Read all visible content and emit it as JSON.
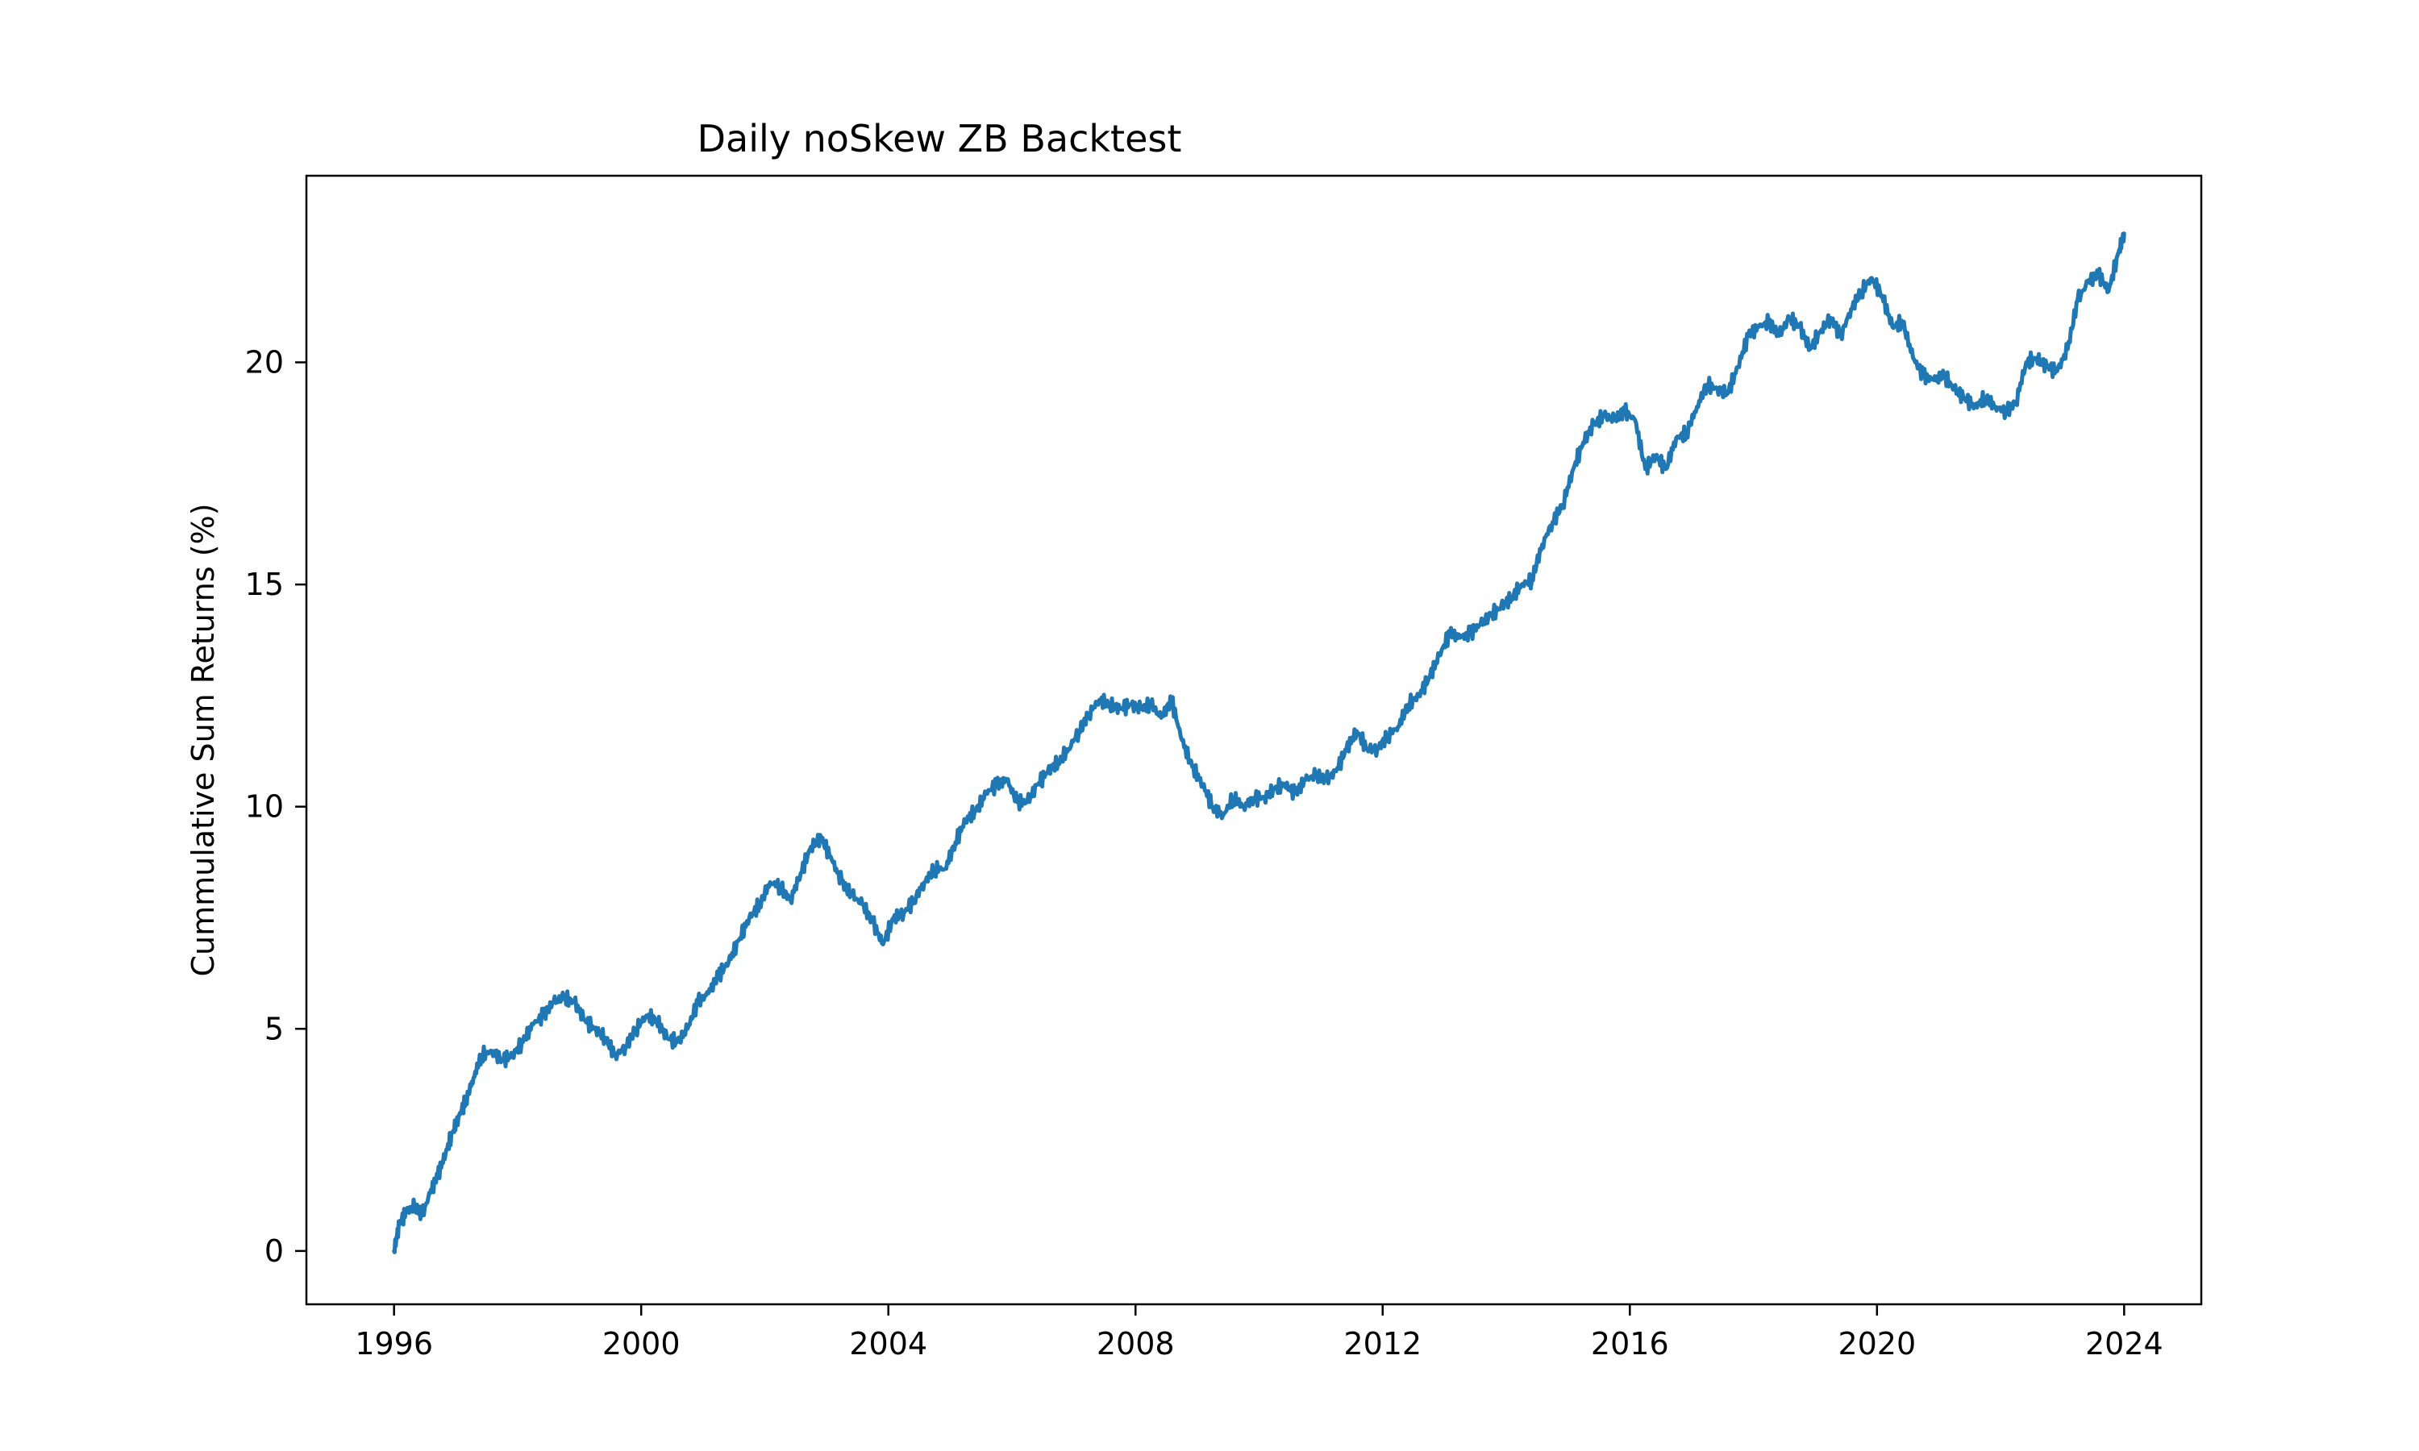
{
  "chart_data": {
    "type": "line",
    "title": "Daily noSkew ZB Backtest",
    "xlabel": "",
    "ylabel": "Cummulative Sum Returns (%)",
    "x_axis_type": "date",
    "xlim": [
      "1994-08-01",
      "2025-04-01"
    ],
    "ylim": [
      -1.2,
      24.2
    ],
    "x_ticks": [
      "1996",
      "2000",
      "2004",
      "2008",
      "2012",
      "2016",
      "2020",
      "2024"
    ],
    "y_ticks": [
      0,
      5,
      10,
      15,
      20
    ],
    "grid": false,
    "legend": "none",
    "line_color": "#1f77b4",
    "series": [
      {
        "name": "",
        "x": [
          "1996-01-01",
          "1996-02-01",
          "1996-03-15",
          "1996-05-01",
          "1996-06-15",
          "1996-08-01",
          "1996-09-15",
          "1996-11-01",
          "1996-12-15",
          "1997-01-15",
          "1997-03-01",
          "1997-04-15",
          "1997-06-01",
          "1997-08-01",
          "1997-10-01",
          "1997-12-01",
          "1998-02-01",
          "1998-04-01",
          "1998-06-01",
          "1998-08-01",
          "1998-10-01",
          "1998-12-01",
          "1999-02-01",
          "1999-04-01",
          "1999-06-01",
          "1999-08-01",
          "1999-10-01",
          "1999-12-01",
          "2000-02-01",
          "2000-04-01",
          "2000-06-01",
          "2000-08-01",
          "2000-10-01",
          "2000-12-01",
          "2001-02-01",
          "2001-04-01",
          "2001-06-01",
          "2001-08-01",
          "2001-10-01",
          "2001-12-01",
          "2002-02-01",
          "2002-04-01",
          "2002-06-01",
          "2002-08-01",
          "2002-10-01",
          "2002-12-01",
          "2003-02-01",
          "2003-04-01",
          "2003-06-01",
          "2003-08-01",
          "2003-10-01",
          "2003-12-01",
          "2004-02-01",
          "2004-04-01",
          "2004-06-01",
          "2004-08-01",
          "2004-10-01",
          "2004-12-01",
          "2005-02-01",
          "2005-04-01",
          "2005-06-01",
          "2005-08-01",
          "2005-10-01",
          "2005-12-01",
          "2006-02-01",
          "2006-04-01",
          "2006-06-01",
          "2006-08-01",
          "2006-10-01",
          "2006-12-01",
          "2007-02-01",
          "2007-04-01",
          "2007-06-01",
          "2007-08-01",
          "2007-10-01",
          "2007-12-01",
          "2008-02-01",
          "2008-04-01",
          "2008-06-01",
          "2008-08-01",
          "2008-10-01",
          "2008-12-01",
          "2009-02-01",
          "2009-04-01",
          "2009-06-01",
          "2009-08-01",
          "2009-10-01",
          "2009-12-01",
          "2010-02-01",
          "2010-04-01",
          "2010-06-01",
          "2010-08-01",
          "2010-10-01",
          "2010-12-01",
          "2011-02-01",
          "2011-04-01",
          "2011-06-01",
          "2011-08-01",
          "2011-10-01",
          "2011-12-01",
          "2012-02-01",
          "2012-04-01",
          "2012-06-01",
          "2012-08-01",
          "2012-10-01",
          "2012-12-01",
          "2013-02-01",
          "2013-04-01",
          "2013-06-01",
          "2013-08-01",
          "2013-10-01",
          "2013-12-01",
          "2014-02-01",
          "2014-04-01",
          "2014-06-01",
          "2014-08-01",
          "2014-10-01",
          "2014-12-01",
          "2015-02-01",
          "2015-04-01",
          "2015-06-01",
          "2015-08-01",
          "2015-10-01",
          "2015-12-01",
          "2016-02-01",
          "2016-04-01",
          "2016-06-01",
          "2016-08-01",
          "2016-10-01",
          "2016-12-01",
          "2017-02-01",
          "2017-04-01",
          "2017-06-01",
          "2017-08-01",
          "2017-10-01",
          "2017-12-01",
          "2018-02-01",
          "2018-04-01",
          "2018-06-01",
          "2018-08-01",
          "2018-10-01",
          "2018-12-01",
          "2019-02-01",
          "2019-04-01",
          "2019-06-01",
          "2019-08-01",
          "2019-10-01",
          "2019-12-01",
          "2020-02-01",
          "2020-04-01",
          "2020-06-01",
          "2020-08-01",
          "2020-10-01",
          "2020-12-01",
          "2021-02-01",
          "2021-04-01",
          "2021-06-01",
          "2021-08-01",
          "2021-10-01",
          "2021-12-01",
          "2022-02-01",
          "2022-04-01",
          "2022-06-01",
          "2022-08-01",
          "2022-10-01",
          "2022-12-01",
          "2023-02-01",
          "2023-04-01",
          "2023-06-01",
          "2023-08-01",
          "2023-10-01",
          "2023-12-01",
          "2024-01-01"
        ],
        "values": [
          0.0,
          0.6,
          0.9,
          1.0,
          0.8,
          1.3,
          1.7,
          2.2,
          2.7,
          3.0,
          3.4,
          3.9,
          4.4,
          4.5,
          4.3,
          4.4,
          4.7,
          5.1,
          5.3,
          5.6,
          5.7,
          5.6,
          5.2,
          5.0,
          4.8,
          4.4,
          4.6,
          5.0,
          5.3,
          5.2,
          4.8,
          4.7,
          5.0,
          5.6,
          5.8,
          6.2,
          6.5,
          7.0,
          7.5,
          7.8,
          8.3,
          8.2,
          7.9,
          8.5,
          9.1,
          9.3,
          8.8,
          8.3,
          8.0,
          7.8,
          7.4,
          6.9,
          7.5,
          7.6,
          7.9,
          8.3,
          8.6,
          8.6,
          9.2,
          9.7,
          9.9,
          10.3,
          10.5,
          10.6,
          10.1,
          10.1,
          10.5,
          10.8,
          11.0,
          11.3,
          11.7,
          12.1,
          12.4,
          12.3,
          12.2,
          12.3,
          12.2,
          12.3,
          12.0,
          12.4,
          11.5,
          10.9,
          10.5,
          10.0,
          9.8,
          10.2,
          10.0,
          10.2,
          10.2,
          10.4,
          10.5,
          10.3,
          10.6,
          10.7,
          10.6,
          10.8,
          11.3,
          11.7,
          11.3,
          11.3,
          11.6,
          11.8,
          12.3,
          12.5,
          12.9,
          13.4,
          13.9,
          13.8,
          13.9,
          14.1,
          14.3,
          14.5,
          14.7,
          15.0,
          15.1,
          15.9,
          16.4,
          16.8,
          17.6,
          18.2,
          18.6,
          18.8,
          18.7,
          18.9,
          18.7,
          17.6,
          17.9,
          17.6,
          18.3,
          18.4,
          19.0,
          19.5,
          19.4,
          19.3,
          19.9,
          20.6,
          20.8,
          20.9,
          20.6,
          21.0,
          20.8,
          20.3,
          20.7,
          21.0,
          20.6,
          21.2,
          21.6,
          21.9,
          21.5,
          20.8,
          20.9,
          20.1,
          19.7,
          19.6,
          19.7,
          19.4,
          19.2,
          19.0,
          19.2,
          19.0,
          18.9,
          19.1,
          20.0,
          20.1,
          19.9,
          19.8,
          20.3,
          21.4,
          21.8,
          22.0,
          21.6,
          22.5,
          22.9
        ]
      }
    ]
  }
}
